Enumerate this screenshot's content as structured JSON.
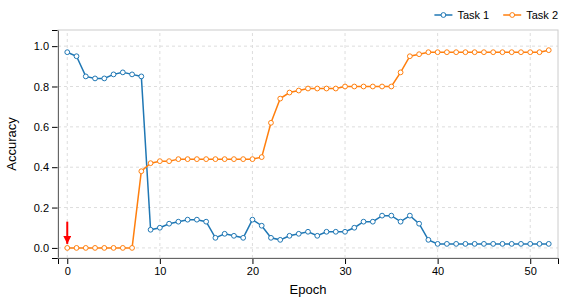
{
  "chart_data": {
    "type": "line",
    "xlabel": "Epoch",
    "ylabel": "Accuracy",
    "x": [
      0,
      1,
      2,
      3,
      4,
      5,
      6,
      7,
      8,
      9,
      10,
      11,
      12,
      13,
      14,
      15,
      16,
      17,
      18,
      19,
      20,
      21,
      22,
      23,
      24,
      25,
      26,
      27,
      28,
      29,
      30,
      31,
      32,
      33,
      34,
      35,
      36,
      37,
      38,
      39,
      40,
      41,
      42,
      43,
      44,
      45,
      46,
      47,
      48,
      49,
      50,
      51,
      52
    ],
    "series": [
      {
        "name": "Task 1",
        "color": "#1f77b4",
        "marker": "o",
        "values": [
          0.97,
          0.95,
          0.85,
          0.84,
          0.84,
          0.86,
          0.87,
          0.86,
          0.85,
          0.09,
          0.1,
          0.12,
          0.13,
          0.14,
          0.14,
          0.13,
          0.05,
          0.07,
          0.06,
          0.05,
          0.14,
          0.11,
          0.05,
          0.04,
          0.06,
          0.07,
          0.08,
          0.06,
          0.08,
          0.08,
          0.08,
          0.1,
          0.13,
          0.13,
          0.16,
          0.16,
          0.13,
          0.16,
          0.12,
          0.04,
          0.02,
          0.02,
          0.02,
          0.02,
          0.02,
          0.02,
          0.02,
          0.02,
          0.02,
          0.02,
          0.02,
          0.02,
          0.02
        ]
      },
      {
        "name": "Task 2",
        "color": "#ff7f0e",
        "marker": "o",
        "values": [
          0.0,
          0.0,
          0.0,
          0.0,
          0.0,
          0.0,
          0.0,
          0.0,
          0.38,
          0.42,
          0.43,
          0.43,
          0.44,
          0.44,
          0.44,
          0.44,
          0.44,
          0.44,
          0.44,
          0.44,
          0.44,
          0.45,
          0.62,
          0.74,
          0.77,
          0.78,
          0.79,
          0.79,
          0.79,
          0.79,
          0.8,
          0.8,
          0.8,
          0.8,
          0.8,
          0.8,
          0.87,
          0.95,
          0.96,
          0.97,
          0.97,
          0.97,
          0.97,
          0.97,
          0.97,
          0.97,
          0.97,
          0.97,
          0.97,
          0.97,
          0.97,
          0.97,
          0.98
        ]
      }
    ],
    "annotations": [
      {
        "type": "arrow",
        "x": 0.0,
        "y_start": 0.13,
        "y_end": 0.02,
        "color": "red"
      }
    ],
    "xlim": [
      -1,
      53
    ],
    "ylim": [
      -0.05,
      1.08
    ],
    "xticks": [
      0,
      10,
      20,
      30,
      40,
      50
    ],
    "yticks": [
      {
        "value": 0,
        "label": "0.0"
      },
      {
        "value": 0.2,
        "label": "0.2"
      },
      {
        "value": 0.4,
        "label": "0.4"
      },
      {
        "value": 0.6,
        "label": "0.6"
      },
      {
        "value": 0.8,
        "label": "0.8"
      },
      {
        "value": 1,
        "label": "1.0"
      }
    ],
    "grid": true,
    "legend": "upper right"
  }
}
